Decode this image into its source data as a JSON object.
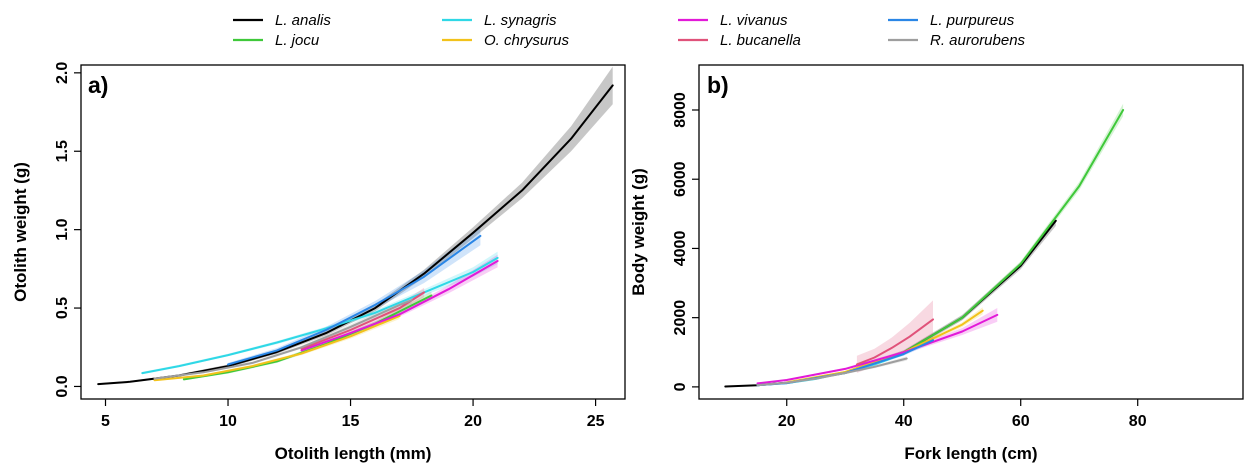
{
  "legend": {
    "placement": "top",
    "items": [
      {
        "label": "L. analis",
        "color": "#000000"
      },
      {
        "label": "L. jocu",
        "color": "#3fc83a"
      },
      {
        "label": "L. synagris",
        "color": "#2fd8e6"
      },
      {
        "label": "O. chrysurus",
        "color": "#f2c21b"
      },
      {
        "label": "L. vivanus",
        "color": "#e21ad8"
      },
      {
        "label": "L. bucanella",
        "color": "#e0527a"
      },
      {
        "label": "L. purpureus",
        "color": "#2a86e6"
      },
      {
        "label": "R. aurorubens",
        "color": "#9e9e9e"
      }
    ]
  },
  "chart_data": [
    {
      "type": "line",
      "panel_label": "a)",
      "xlabel": "Otolith length (mm)",
      "ylabel": "Otolith weight (g)",
      "xlim": [
        4,
        26.2
      ],
      "ylim": [
        -0.08,
        2.05
      ],
      "xticks": [
        5,
        10,
        15,
        20,
        25
      ],
      "yticks": [
        0.0,
        0.5,
        1.0,
        1.5,
        2.0
      ],
      "xtick_labels": [
        "5",
        "10",
        "15",
        "20",
        "25"
      ],
      "ytick_labels": [
        "0.0",
        "0.5",
        "1.0",
        "1.5",
        "2.0"
      ],
      "grid": false,
      "series": [
        {
          "name": "L. analis",
          "color": "#000000",
          "x": [
            4.7,
            6,
            8,
            10,
            12,
            14,
            16,
            18,
            20,
            22,
            24,
            25.7
          ],
          "y": [
            0.015,
            0.03,
            0.07,
            0.13,
            0.22,
            0.34,
            0.5,
            0.72,
            0.98,
            1.25,
            1.58,
            1.92
          ],
          "ci": [
            0.005,
            0.005,
            0.008,
            0.01,
            0.012,
            0.015,
            0.02,
            0.025,
            0.035,
            0.05,
            0.08,
            0.12
          ]
        },
        {
          "name": "L. jocu",
          "color": "#3fc83a",
          "x": [
            8.2,
            10,
            12,
            14,
            16,
            18.3
          ],
          "y": [
            0.045,
            0.09,
            0.16,
            0.27,
            0.4,
            0.58
          ],
          "ci": [
            0.006,
            0.008,
            0.01,
            0.012,
            0.015,
            0.025
          ]
        },
        {
          "name": "L. synagris",
          "color": "#2fd8e6",
          "x": [
            6.5,
            8,
            10,
            12,
            14,
            16,
            18,
            20,
            21
          ],
          "y": [
            0.085,
            0.13,
            0.2,
            0.28,
            0.37,
            0.47,
            0.6,
            0.73,
            0.82
          ],
          "ci": [
            0.008,
            0.008,
            0.008,
            0.01,
            0.012,
            0.015,
            0.02,
            0.03,
            0.04
          ]
        },
        {
          "name": "O. chrysurus",
          "color": "#f2c21b",
          "x": [
            7,
            9,
            11,
            13,
            15,
            17
          ],
          "y": [
            0.04,
            0.07,
            0.13,
            0.21,
            0.32,
            0.45
          ],
          "ci": [
            0.005,
            0.006,
            0.008,
            0.01,
            0.015,
            0.02
          ]
        },
        {
          "name": "L. vivanus",
          "color": "#e21ad8",
          "x": [
            13,
            15,
            17,
            19,
            21
          ],
          "y": [
            0.23,
            0.34,
            0.46,
            0.62,
            0.8
          ],
          "ci": [
            0.01,
            0.012,
            0.015,
            0.025,
            0.04
          ]
        },
        {
          "name": "L. bucanella",
          "color": "#e0527a",
          "x": [
            13,
            15,
            17,
            18
          ],
          "y": [
            0.24,
            0.36,
            0.5,
            0.6
          ],
          "ci": [
            0.01,
            0.015,
            0.025,
            0.03
          ]
        },
        {
          "name": "L. purpureus",
          "color": "#2a86e6",
          "x": [
            10,
            12,
            14,
            16,
            18,
            20.3
          ],
          "y": [
            0.14,
            0.23,
            0.36,
            0.52,
            0.7,
            0.96
          ],
          "ci": [
            0.01,
            0.015,
            0.02,
            0.025,
            0.04,
            0.06
          ]
        },
        {
          "name": "R. aurorubens",
          "color": "#9e9e9e",
          "x": [
            7,
            9,
            11,
            13,
            15,
            17,
            17.5
          ],
          "y": [
            0.05,
            0.09,
            0.15,
            0.25,
            0.38,
            0.52,
            0.55
          ],
          "ci": [
            0.005,
            0.006,
            0.008,
            0.01,
            0.015,
            0.02,
            0.025
          ]
        }
      ]
    },
    {
      "type": "line",
      "panel_label": "b)",
      "xlabel": "Fork length (cm)",
      "ylabel": "Body weight (g)",
      "xlim": [
        5,
        98
      ],
      "ylim": [
        -350,
        9300
      ],
      "xticks": [
        20,
        40,
        60,
        80
      ],
      "yticks": [
        0,
        2000,
        4000,
        6000,
        8000
      ],
      "xtick_labels": [
        "20",
        "40",
        "60",
        "80"
      ],
      "ytick_labels": [
        "0",
        "2000",
        "4000",
        "6000",
        "8000"
      ],
      "grid": false,
      "series": [
        {
          "name": "L. analis",
          "color": "#000000",
          "x": [
            9.5,
            15,
            20,
            30,
            40,
            50,
            60,
            66
          ],
          "y": [
            10,
            50,
            120,
            420,
            1000,
            2000,
            3500,
            4800
          ],
          "ci": [
            5,
            10,
            20,
            40,
            60,
            80,
            100,
            150
          ]
        },
        {
          "name": "L. jocu",
          "color": "#3fc83a",
          "x": [
            20,
            30,
            40,
            50,
            60,
            70,
            77.5
          ],
          "y": [
            110,
            400,
            1000,
            2000,
            3550,
            5800,
            8000
          ],
          "ci": [
            10,
            20,
            40,
            60,
            80,
            120,
            180
          ]
        },
        {
          "name": "L. synagris",
          "color": "#2fd8e6",
          "x": [
            15,
            20,
            25,
            30,
            35,
            40
          ],
          "y": [
            50,
            110,
            230,
            420,
            650,
            950
          ],
          "ci": [
            5,
            10,
            15,
            20,
            30,
            40
          ]
        },
        {
          "name": "O. chrysurus",
          "color": "#f2c21b",
          "x": [
            20,
            30,
            40,
            50,
            53.5
          ],
          "y": [
            130,
            430,
            1000,
            1800,
            2200
          ],
          "ci": [
            10,
            20,
            40,
            70,
            100
          ]
        },
        {
          "name": "L. vivanus",
          "color": "#e21ad8",
          "x": [
            15,
            20,
            30,
            40,
            50,
            56
          ],
          "y": [
            100,
            200,
            520,
            1000,
            1600,
            2080
          ],
          "ci": [
            20,
            20,
            30,
            50,
            100,
            200
          ]
        },
        {
          "name": "L. bucanella",
          "color": "#e0527a",
          "x": [
            32,
            35,
            38,
            41,
            45
          ],
          "y": [
            650,
            850,
            1130,
            1450,
            1950
          ],
          "ci": [
            250,
            250,
            300,
            400,
            550
          ]
        },
        {
          "name": "L. purpureus",
          "color": "#2a86e6",
          "x": [
            15,
            20,
            30,
            40,
            45
          ],
          "y": [
            50,
            110,
            400,
            950,
            1350
          ],
          "ci": [
            10,
            15,
            30,
            50,
            70
          ]
        },
        {
          "name": "R. aurorubens",
          "color": "#9e9e9e",
          "x": [
            15,
            20,
            25,
            30,
            35,
            40.5
          ],
          "y": [
            50,
            120,
            240,
            400,
            580,
            820
          ],
          "ci": [
            10,
            15,
            20,
            30,
            40,
            60
          ]
        }
      ]
    }
  ]
}
